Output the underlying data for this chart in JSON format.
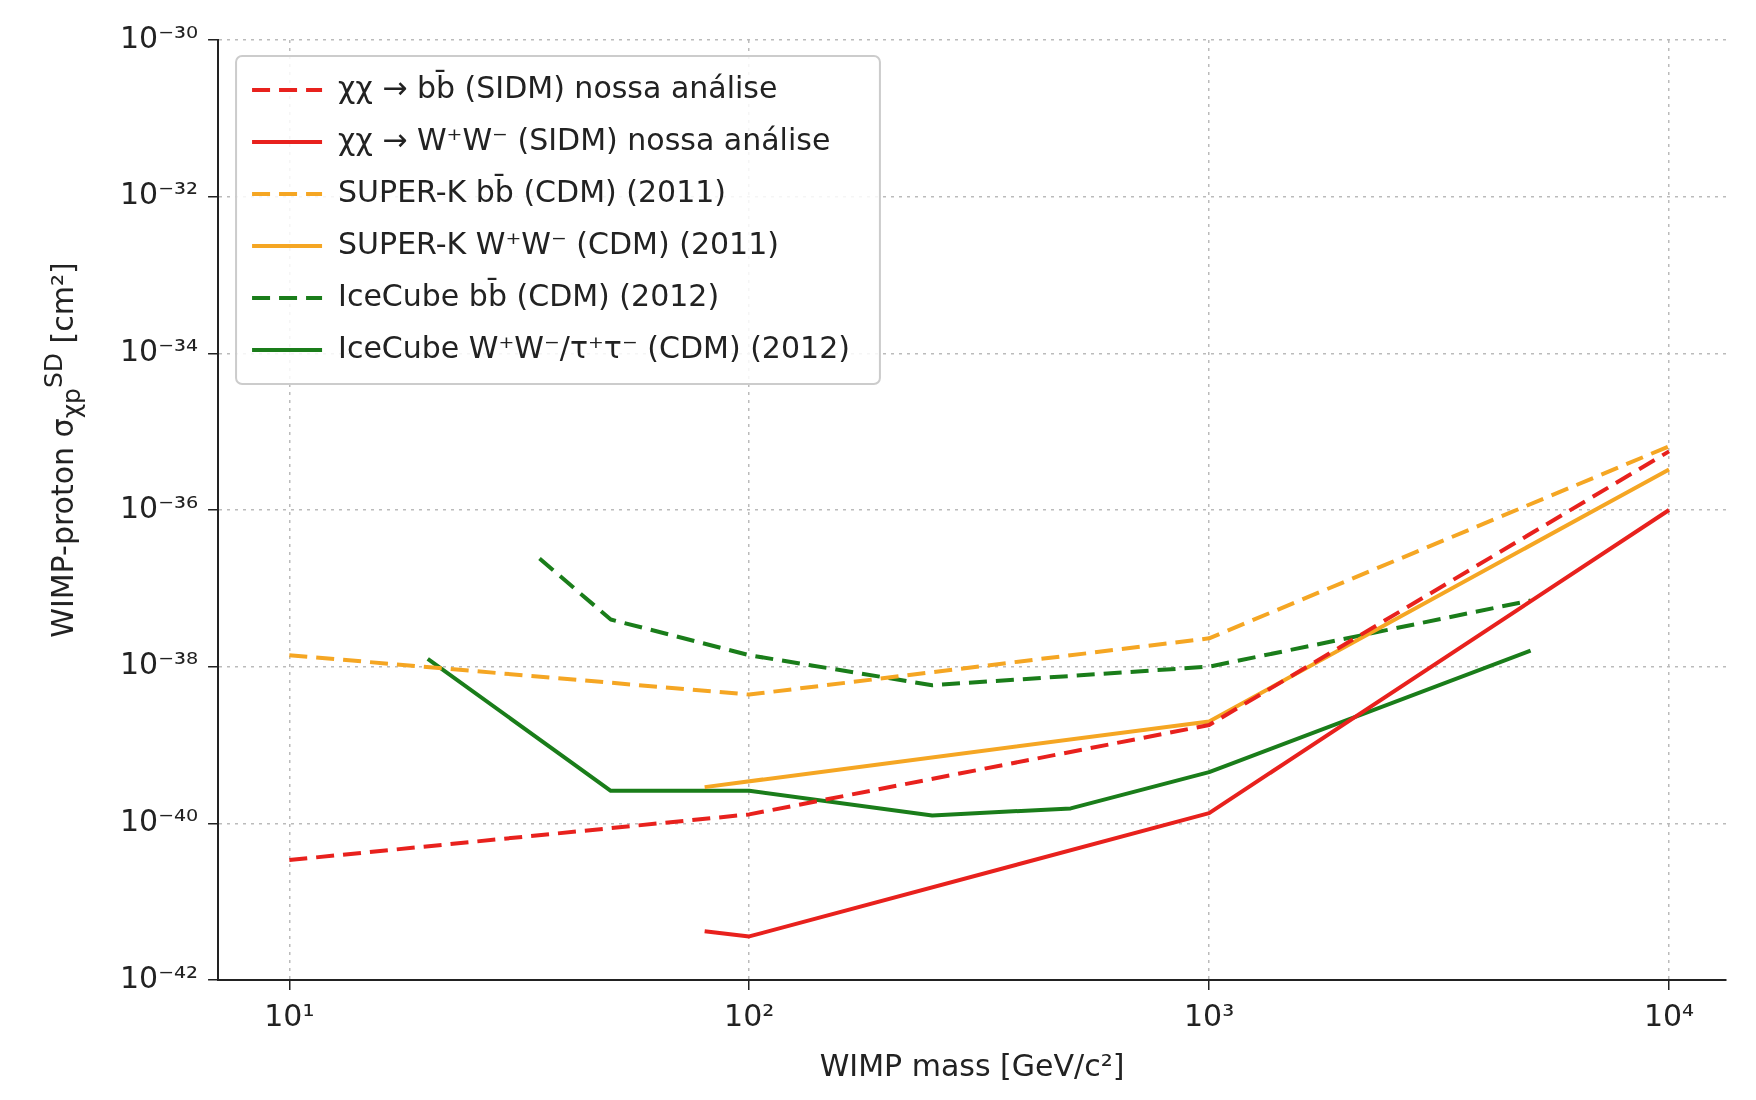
{
  "chart_data": {
    "type": "line",
    "xlabel": "WIMP mass [GeV/c²]",
    "ylabel": "WIMP-proton σ$_{χp}$$^{SD}$ [cm²]",
    "log": "xy",
    "grid": true,
    "legend": "top left",
    "marker": "none",
    "xlim": [
      7,
      13300
    ],
    "ylim": [
      1e-42,
      1e-30
    ],
    "xticks": [
      {
        "value": 10,
        "label": "10¹"
      },
      {
        "value": 100,
        "label": "10²"
      },
      {
        "value": 1000,
        "label": "10³"
      },
      {
        "value": 10000,
        "label": "10⁴"
      }
    ],
    "yticks": [
      {
        "value": 1e-42,
        "label": "10⁻⁴²"
      },
      {
        "value": 1e-40,
        "label": "10⁻⁴⁰"
      },
      {
        "value": 1e-38,
        "label": "10⁻³⁸"
      },
      {
        "value": 1e-36,
        "label": "10⁻³⁶"
      },
      {
        "value": 1e-34,
        "label": "10⁻³⁴"
      },
      {
        "value": 1e-32,
        "label": "10⁻³²"
      },
      {
        "value": 1e-30,
        "label": "10⁻³⁰"
      }
    ],
    "series": [
      {
        "name": "χχ → bb̄ (SIDM) nossa análise",
        "color": "#e8211d",
        "line_style": "dashed",
        "x": [
          10,
          100,
          1000,
          10000
        ],
        "values": [
          3.4e-41,
          1.3e-40,
          1.8e-39,
          5.6e-36
        ]
      },
      {
        "name": "χχ → W⁺W⁻ (SIDM) nossa análise",
        "color": "#e8211d",
        "line_style": "solid",
        "x": [
          80,
          100,
          1000,
          10000
        ],
        "values": [
          4.2e-42,
          3.6e-42,
          1.35e-40,
          1e-36
        ]
      },
      {
        "name": "SUPER-K bb̄ (CDM) (2011)",
        "color": "#f5a623",
        "line_style": "dashed",
        "x": [
          10,
          100,
          1000,
          10000
        ],
        "values": [
          1.4e-38,
          4.4e-39,
          2.3e-38,
          6.5e-36
        ]
      },
      {
        "name": "SUPER-K W⁺W⁻ (CDM) (2011)",
        "color": "#f5a623",
        "line_style": "solid",
        "x": [
          80,
          1000,
          10000
        ],
        "values": [
          2.9e-40,
          2e-39,
          3.3e-36
        ]
      },
      {
        "name": "IceCube bb̄ (CDM) (2012)",
        "color": "#1a7d1a",
        "line_style": "dashed",
        "x": [
          35,
          50,
          100,
          250,
          1000,
          5000
        ],
        "values": [
          2.4e-37,
          4e-38,
          1.4e-38,
          5.8e-39,
          1e-38,
          7e-38
        ]
      },
      {
        "name": "IceCube W⁺W⁻/τ⁺τ⁻ (CDM) (2012)",
        "color": "#1a7d1a",
        "line_style": "solid",
        "x": [
          20,
          50,
          100,
          250,
          500,
          1000,
          5000
        ],
        "values": [
          1.26e-38,
          2.6e-40,
          2.6e-40,
          1.26e-40,
          1.55e-40,
          4.5e-40,
          1.6e-38
        ]
      }
    ]
  }
}
